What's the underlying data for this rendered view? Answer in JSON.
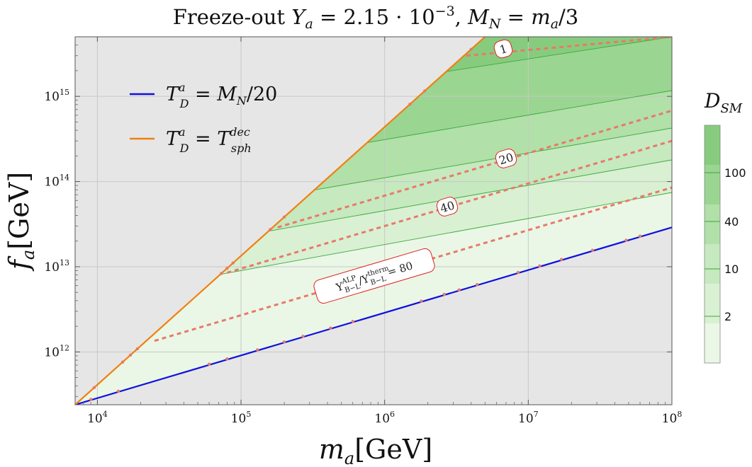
{
  "chart_data": {
    "type": "area",
    "title": "Freeze-out  Y_a = 2.15 · 10^−3,  M_N = m_a/3",
    "xlabel": "m_a[GeV]",
    "ylabel": "f_a[GeV]",
    "xscale": "log",
    "yscale": "log",
    "xlim": [
      7000,
      100000000
    ],
    "ylim": [
      240000000000,
      5000000000000000
    ],
    "x_ticks": [
      {
        "value": 10000,
        "base": "10",
        "exp": "4"
      },
      {
        "value": 100000,
        "base": "10",
        "exp": "5"
      },
      {
        "value": 1000000,
        "base": "10",
        "exp": "6"
      },
      {
        "value": 10000000,
        "base": "10",
        "exp": "7"
      },
      {
        "value": 100000000,
        "base": "10",
        "exp": "8"
      }
    ],
    "y_ticks": [
      {
        "value": 1000000000000,
        "base": "10",
        "exp": "12"
      },
      {
        "value": 10000000000000,
        "base": "10",
        "exp": "13"
      },
      {
        "value": 100000000000000,
        "base": "10",
        "exp": "14"
      },
      {
        "value": 1000000000000000,
        "base": "10",
        "exp": "15"
      }
    ],
    "grid": true,
    "series": [
      {
        "name": "T_D^a = M_N/20",
        "color": "#1010e0",
        "x": [
          7000,
          100000000
        ],
        "y": [
          240000000000,
          29000000000000
        ]
      },
      {
        "name": "T_D^a = T_sph^dec",
        "color": "#f08010",
        "x": [
          7000,
          5000000
        ],
        "y": [
          240000000000,
          5000000000000000
        ]
      }
    ],
    "contours": {
      "levels": [
        1,
        20,
        40,
        80
      ],
      "labels": [
        "1",
        "20",
        "40",
        "Y_B−L^ALP / Y_B−L^therm = 80"
      ],
      "color": "#e8796a",
      "lines": [
        {
          "level": 1,
          "x": [
            3700000,
            100000000
          ],
          "y": [
            3000000000000000,
            5000000000000000
          ]
        },
        {
          "level": 20,
          "x": [
            180000,
            100000000
          ],
          "y": [
            29000000000000,
            680000000000000
          ]
        },
        {
          "level": 40,
          "x": [
            80000,
            100000000
          ],
          "y": [
            8500000000000,
            300000000000000
          ]
        },
        {
          "level": 80,
          "x": [
            25000,
            100000000
          ],
          "y": [
            1350000000000,
            85000000000000
          ]
        }
      ]
    },
    "colorbar": {
      "label": "D_SM",
      "ticks": [
        {
          "value": 2,
          "label": "2"
        },
        {
          "value": 10,
          "label": "10"
        },
        {
          "value": 40,
          "label": "40"
        },
        {
          "value": 100,
          "label": "100"
        }
      ],
      "colors": [
        "#eaf7e6",
        "#d9f0d3",
        "#c6e9bf",
        "#b1e0a8",
        "#9bd592",
        "#87cc7e"
      ]
    },
    "legend": {
      "position": "top-left",
      "entries": [
        "T_D^a = M_N/20",
        "T_D^a = T_sph^dec"
      ]
    }
  }
}
